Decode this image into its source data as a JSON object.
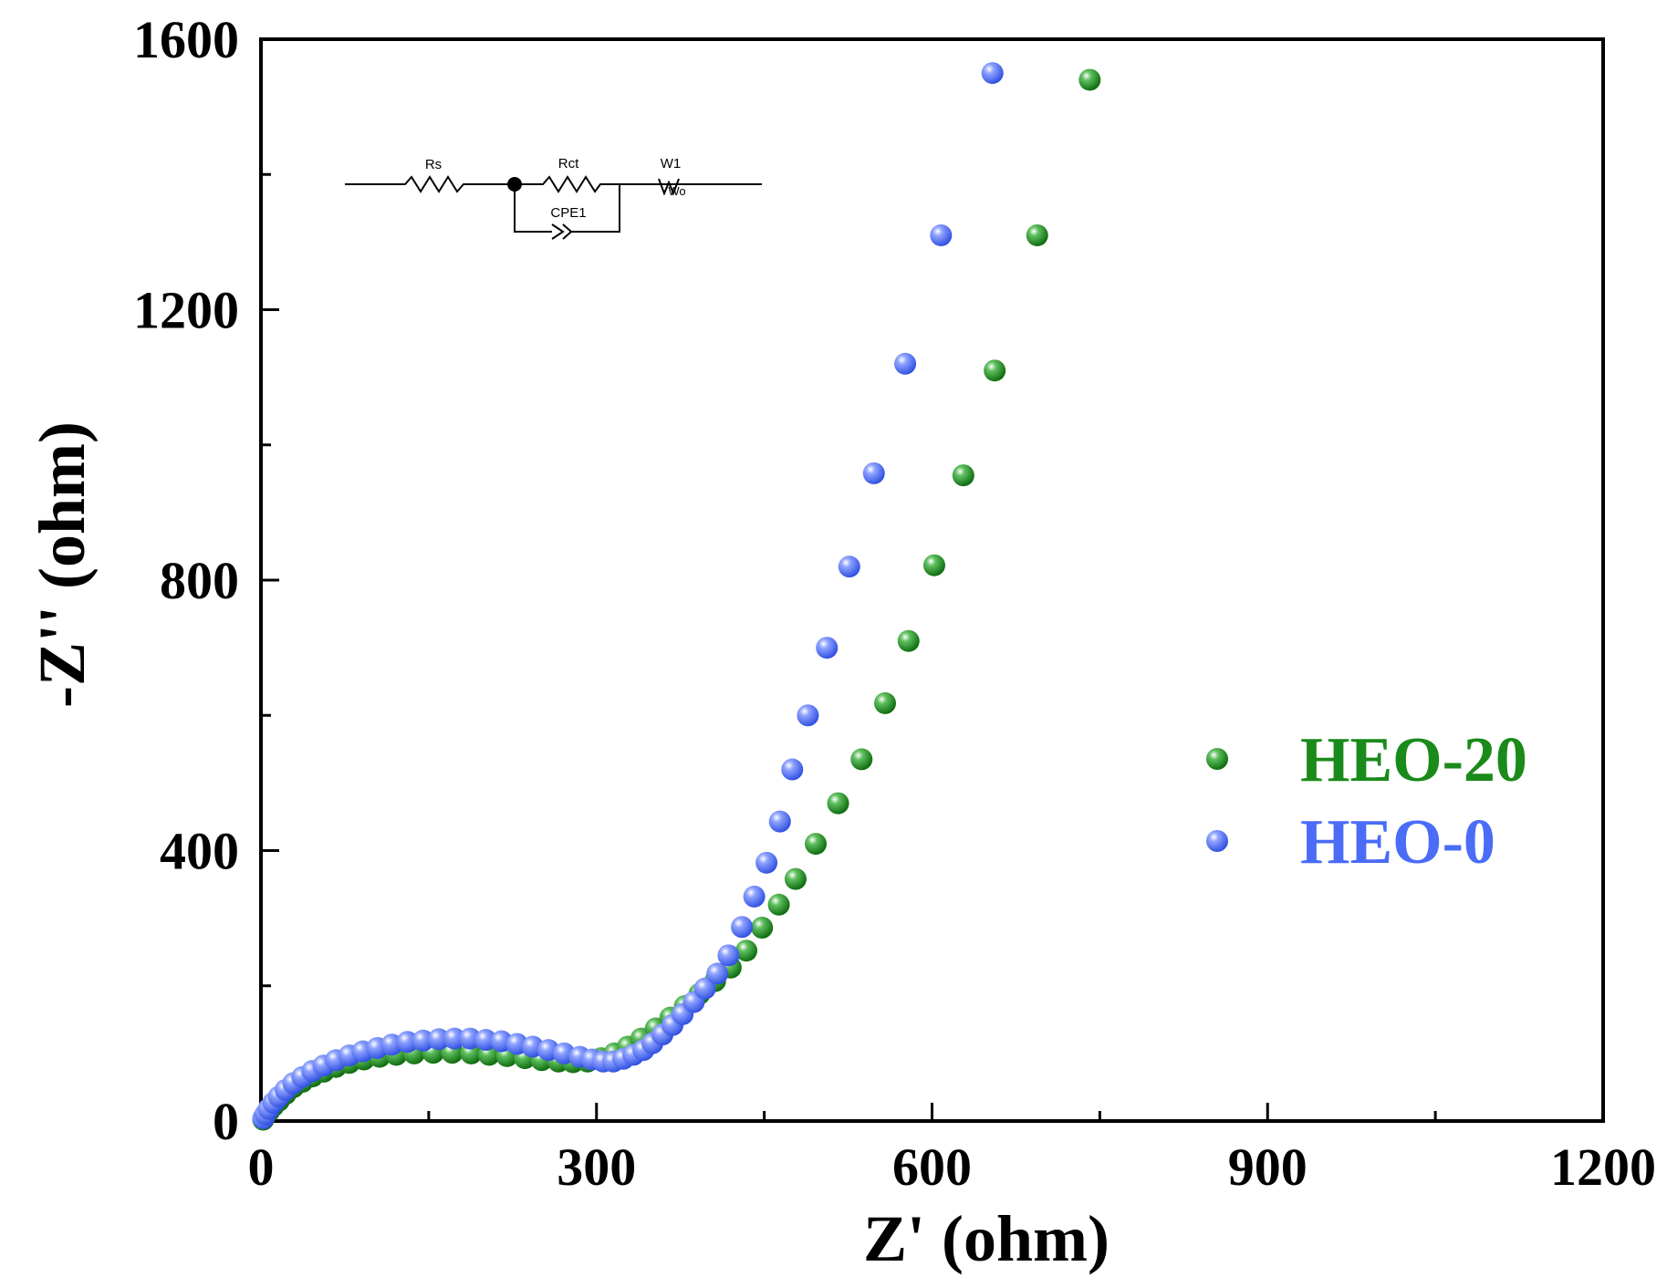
{
  "chart_data": {
    "type": "scatter",
    "xlabel": "Z' (ohm)",
    "ylabel": "-Z'' (ohm)",
    "xlim": [
      0,
      1200
    ],
    "ylim": [
      0,
      1600
    ],
    "x_ticks": [
      "0",
      "300",
      "600",
      "900",
      "1200"
    ],
    "y_ticks": [
      "0",
      "400",
      "800",
      "1200",
      "1600"
    ],
    "legend_position": "right-middle",
    "series": [
      {
        "name": "HEO-20",
        "color": "#1a8a1a",
        "points": [
          [
            2,
            2
          ],
          [
            4,
            8
          ],
          [
            7,
            14
          ],
          [
            11,
            22
          ],
          [
            16,
            30
          ],
          [
            22,
            40
          ],
          [
            29,
            50
          ],
          [
            37,
            58
          ],
          [
            46,
            66
          ],
          [
            56,
            73
          ],
          [
            67,
            80
          ],
          [
            79,
            86
          ],
          [
            92,
            91
          ],
          [
            106,
            95
          ],
          [
            121,
            98
          ],
          [
            137,
            100
          ],
          [
            154,
            101
          ],
          [
            171,
            101
          ],
          [
            188,
            100
          ],
          [
            204,
            98
          ],
          [
            220,
            96
          ],
          [
            236,
            93
          ],
          [
            251,
            90
          ],
          [
            266,
            88
          ],
          [
            279,
            87
          ],
          [
            292,
            88
          ],
          [
            304,
            93
          ],
          [
            316,
            100
          ],
          [
            328,
            110
          ],
          [
            340,
            122
          ],
          [
            353,
            137
          ],
          [
            366,
            153
          ],
          [
            379,
            170
          ],
          [
            392,
            188
          ],
          [
            406,
            207
          ],
          [
            420,
            227
          ],
          [
            434,
            252
          ],
          [
            448,
            286
          ],
          [
            463,
            320
          ],
          [
            478,
            358
          ],
          [
            496,
            410
          ],
          [
            516,
            470
          ],
          [
            537,
            535
          ],
          [
            558,
            618
          ],
          [
            579,
            710
          ],
          [
            602,
            822
          ],
          [
            628,
            955
          ],
          [
            656,
            1110
          ],
          [
            694,
            1310
          ],
          [
            741,
            1540
          ]
        ]
      },
      {
        "name": "HEO-0",
        "color": "#4a6cf7",
        "points": [
          [
            2,
            4
          ],
          [
            4,
            10
          ],
          [
            7,
            18
          ],
          [
            11,
            27
          ],
          [
            16,
            36
          ],
          [
            22,
            46
          ],
          [
            29,
            56
          ],
          [
            37,
            65
          ],
          [
            46,
            74
          ],
          [
            56,
            82
          ],
          [
            67,
            90
          ],
          [
            79,
            97
          ],
          [
            91,
            103
          ],
          [
            104,
            108
          ],
          [
            117,
            113
          ],
          [
            131,
            117
          ],
          [
            145,
            119
          ],
          [
            159,
            121
          ],
          [
            173,
            122
          ],
          [
            187,
            122
          ],
          [
            201,
            120
          ],
          [
            215,
            118
          ],
          [
            229,
            114
          ],
          [
            243,
            110
          ],
          [
            257,
            105
          ],
          [
            271,
            100
          ],
          [
            285,
            95
          ],
          [
            296,
            91
          ],
          [
            306,
            88
          ],
          [
            315,
            88
          ],
          [
            324,
            92
          ],
          [
            333,
            98
          ],
          [
            342,
            105
          ],
          [
            350,
            115
          ],
          [
            359,
            128
          ],
          [
            368,
            142
          ],
          [
            377,
            158
          ],
          [
            387,
            176
          ],
          [
            397,
            196
          ],
          [
            408,
            218
          ],
          [
            418,
            245
          ],
          [
            430,
            287
          ],
          [
            441,
            332
          ],
          [
            452,
            382
          ],
          [
            464,
            443
          ],
          [
            475,
            520
          ],
          [
            489,
            600
          ],
          [
            506,
            700
          ],
          [
            526,
            820
          ],
          [
            548,
            958
          ],
          [
            576,
            1120
          ],
          [
            608,
            1310
          ],
          [
            654,
            1550
          ]
        ]
      }
    ],
    "inset_circuit": {
      "labels": [
        "Rs",
        "Rct",
        "W1",
        "CPE1",
        "Wo"
      ]
    }
  }
}
